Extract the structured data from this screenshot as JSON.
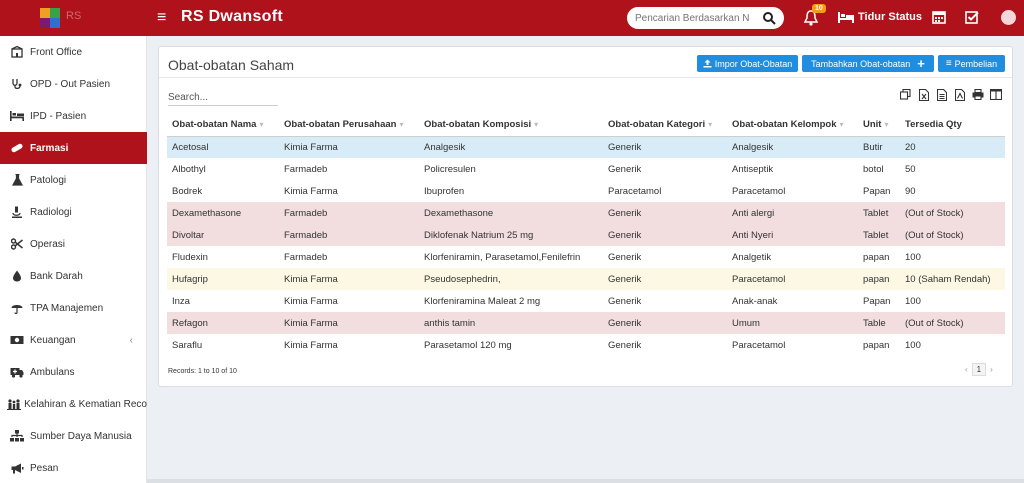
{
  "app": {
    "title": "RS Dwansoft",
    "logo_text": "RS"
  },
  "topbar": {
    "search_placeholder": "Pencarian Berdasarkan N",
    "notification_count": "10",
    "bed_status_label": "Tidur Status"
  },
  "sidebar": {
    "items": [
      {
        "label": "Front Office",
        "icon": "building-icon"
      },
      {
        "label": "OPD - Out Pasien",
        "icon": "stethoscope-icon"
      },
      {
        "label": "IPD - Pasien",
        "icon": "bed-icon"
      },
      {
        "label": "Farmasi",
        "icon": "pill-icon",
        "active": true
      },
      {
        "label": "Patologi",
        "icon": "flask-icon"
      },
      {
        "label": "Radiologi",
        "icon": "microscope-icon"
      },
      {
        "label": "Operasi",
        "icon": "scissors-icon"
      },
      {
        "label": "Bank Darah",
        "icon": "drop-icon"
      },
      {
        "label": "TPA Manajemen",
        "icon": "umbrella-icon"
      },
      {
        "label": "Keuangan",
        "icon": "money-icon",
        "has_children": true
      },
      {
        "label": "Ambulans",
        "icon": "ambulance-icon"
      },
      {
        "label": "Kelahiran & Kematian Reco",
        "icon": "family-icon"
      },
      {
        "label": "Sumber Daya Manusia",
        "icon": "sitemap-icon"
      },
      {
        "label": "Pesan",
        "icon": "megaphone-icon"
      }
    ]
  },
  "panel": {
    "title": "Obat-obatan Saham",
    "buttons": {
      "import": "Impor Obat-Obatan",
      "add": "Tambahkan Obat-obatan",
      "purchase": "Pembelian"
    },
    "search_placeholder": "Search...",
    "columns": [
      "Obat-obatan Nama",
      "Obat-obatan Perusahaan",
      "Obat-obatan Komposisi",
      "Obat-obatan Kategori",
      "Obat-obatan Kelompok",
      "Unit",
      "Tersedia Qty"
    ],
    "rows": [
      {
        "cells": [
          "Acetosal",
          "Kimia Farma",
          "Analgesik",
          "Generik",
          "Analgesik",
          "Butir",
          "20"
        ],
        "status": "blue"
      },
      {
        "cells": [
          "Albothyl",
          "Farmadeb",
          "Policresulen",
          "Generik",
          "Antiseptik",
          "botol",
          "50"
        ],
        "status": "none"
      },
      {
        "cells": [
          "Bodrek",
          "Kimia Farma",
          "Ibuprofen",
          "Paracetamol",
          "Paracetamol",
          "Papan",
          "90"
        ],
        "status": "none"
      },
      {
        "cells": [
          "Dexamethasone",
          "Farmadeb",
          "Dexamethasone",
          "Generik",
          "Anti alergi",
          "Tablet",
          "(Out of Stock)"
        ],
        "status": "red"
      },
      {
        "cells": [
          "Divoltar",
          "Farmadeb",
          "Diklofenak Natrium 25 mg",
          "Generik",
          "Anti Nyeri",
          "Tablet",
          "(Out of Stock)"
        ],
        "status": "red"
      },
      {
        "cells": [
          "Fludexin",
          "Farmadeb",
          "Klorfeniramin, Parasetamol,Fenilefrin",
          "Generik",
          "Analgetik",
          "papan",
          "100"
        ],
        "status": "none"
      },
      {
        "cells": [
          "Hufagrip",
          "Kimia Farma",
          "Pseudosephedrin,",
          "Generik",
          "Paracetamol",
          "papan",
          "10 (Saham Rendah)"
        ],
        "status": "yellow"
      },
      {
        "cells": [
          "Inza",
          "Kimia Farma",
          "Klorfeniramina Maleat 2 mg",
          "Generik",
          "Anak-anak",
          "Papan",
          "100"
        ],
        "status": "none"
      },
      {
        "cells": [
          "Refagon",
          "Kimia Farma",
          "anthis tamin",
          "Generik",
          "Umum",
          "Table",
          "(Out of Stock)"
        ],
        "status": "red"
      },
      {
        "cells": [
          "Saraflu",
          "Kimia Farma",
          "Parasetamol 120 mg",
          "Generik",
          "Paracetamol",
          "papan",
          "100"
        ],
        "status": "none"
      }
    ],
    "records_text": "Records: 1 to 10 of 10",
    "pagination": {
      "current": "1"
    }
  },
  "colors": {
    "brand": "#b0121c",
    "button": "#1f8ee0",
    "row_blue": "#d8ecf7",
    "row_red": "#f2dede",
    "row_yellow": "#fcf8e3"
  }
}
